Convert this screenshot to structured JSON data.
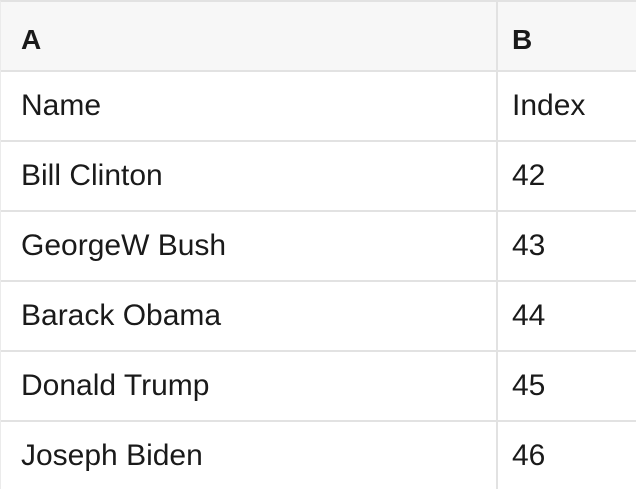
{
  "table": {
    "columns": [
      {
        "label": "A"
      },
      {
        "label": "B"
      }
    ],
    "rows": [
      {
        "a": "Name",
        "b": "Index"
      },
      {
        "a": "Bill Clinton",
        "b": "42"
      },
      {
        "a": "GeorgeW Bush",
        "b": "43"
      },
      {
        "a": "Barack Obama",
        "b": "44"
      },
      {
        "a": "Donald Trump",
        "b": "45"
      },
      {
        "a": "Joseph Biden",
        "b": "46"
      }
    ]
  },
  "colors": {
    "header_bg": "#f7f7f7",
    "border": "#e2e2e2",
    "text": "#1a1a1a",
    "background": "#ffffff"
  }
}
